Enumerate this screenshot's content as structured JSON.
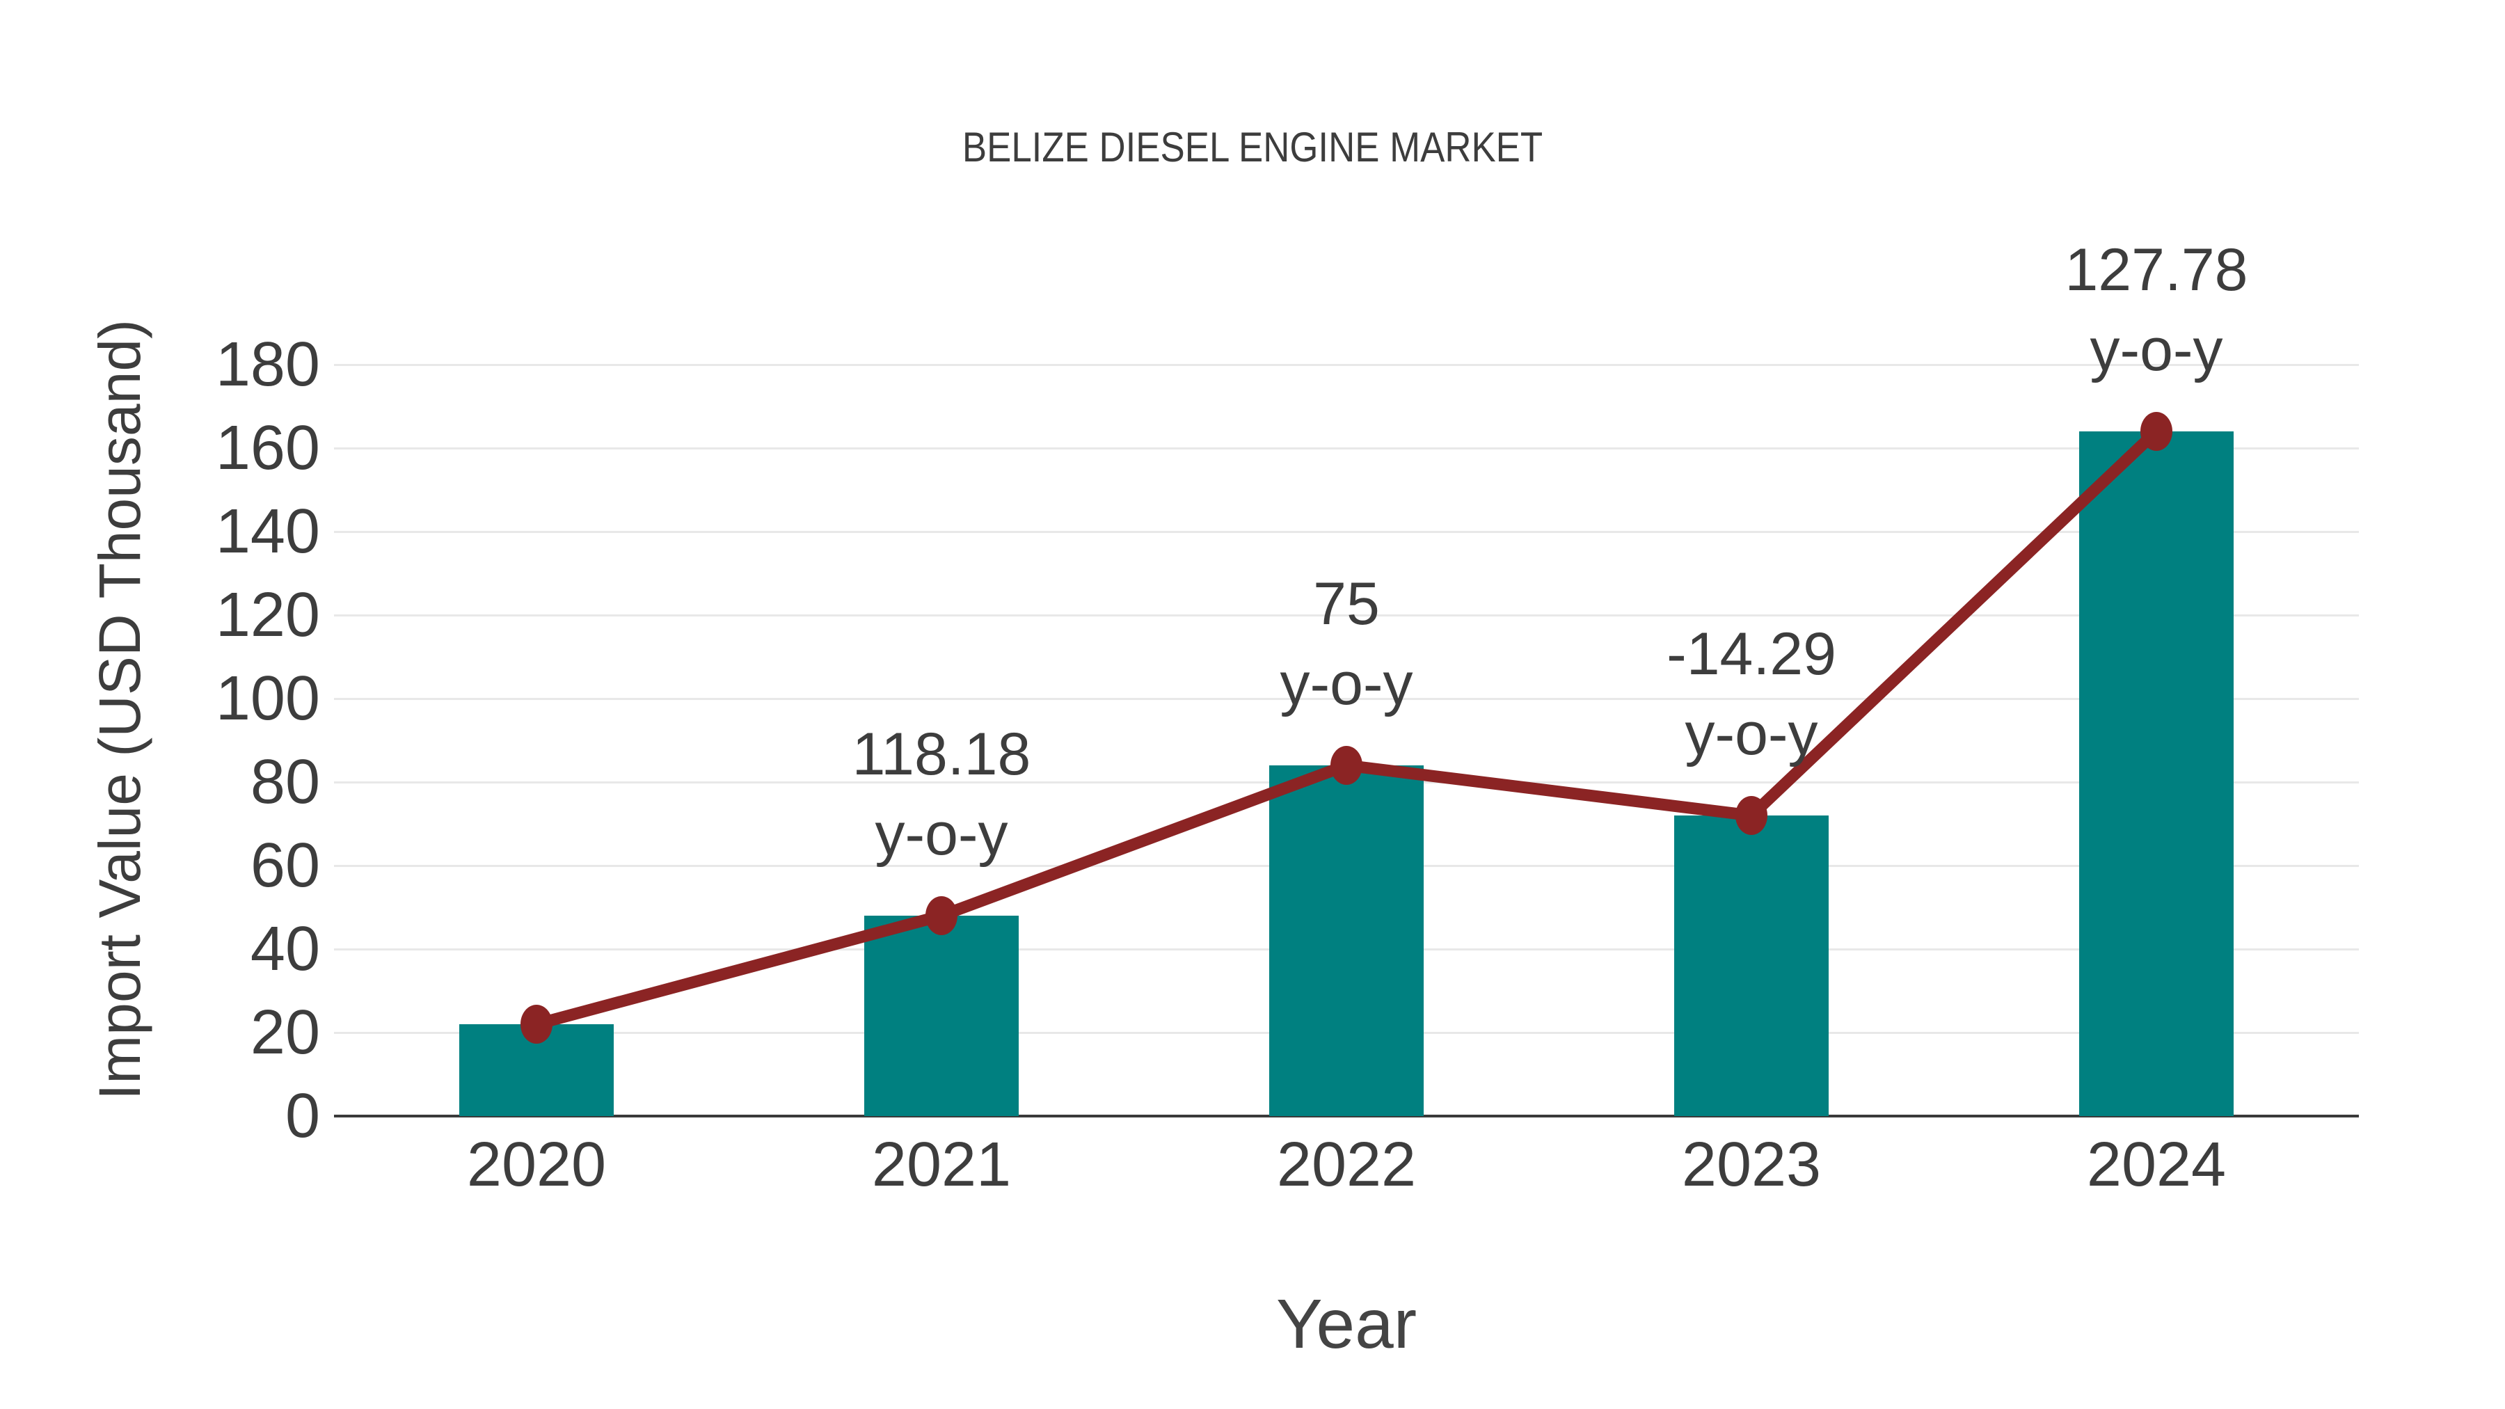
{
  "page": {
    "background": "#ffffff"
  },
  "chart_data": {
    "type": "bar",
    "title": "BELIZE DIESEL ENGINE MARKET",
    "xlabel": "Year",
    "ylabel": "Import Value (USD Thousand)",
    "categories": [
      "2020",
      "2021",
      "2022",
      "2023",
      "2024"
    ],
    "series": [
      {
        "name": "Import Value (USD Thousand)",
        "type": "bar",
        "values": [
          22,
          48,
          84,
          72,
          164
        ],
        "color": "#008080"
      },
      {
        "name": "y-o-y growth (%)",
        "type": "line",
        "values": [
          22,
          48,
          84,
          72,
          164
        ],
        "color": "#8B2424",
        "marker_color": "#8B2424",
        "point_labels": [
          null,
          "118.18",
          "75",
          "-14.29",
          "127.78"
        ],
        "point_sublabel": "y-o-y"
      }
    ],
    "ylim": [
      0,
      180
    ],
    "yticks": [
      0,
      20,
      40,
      60,
      80,
      100,
      120,
      140,
      160,
      180
    ],
    "grid": true,
    "legend_position": "none",
    "colors": {
      "bar": "#008080",
      "line": "#8B2424",
      "marker": "#8B2424",
      "grid": "#E8E8E8",
      "axis": "#3A3A3A",
      "text": "#3D3D3D"
    }
  }
}
